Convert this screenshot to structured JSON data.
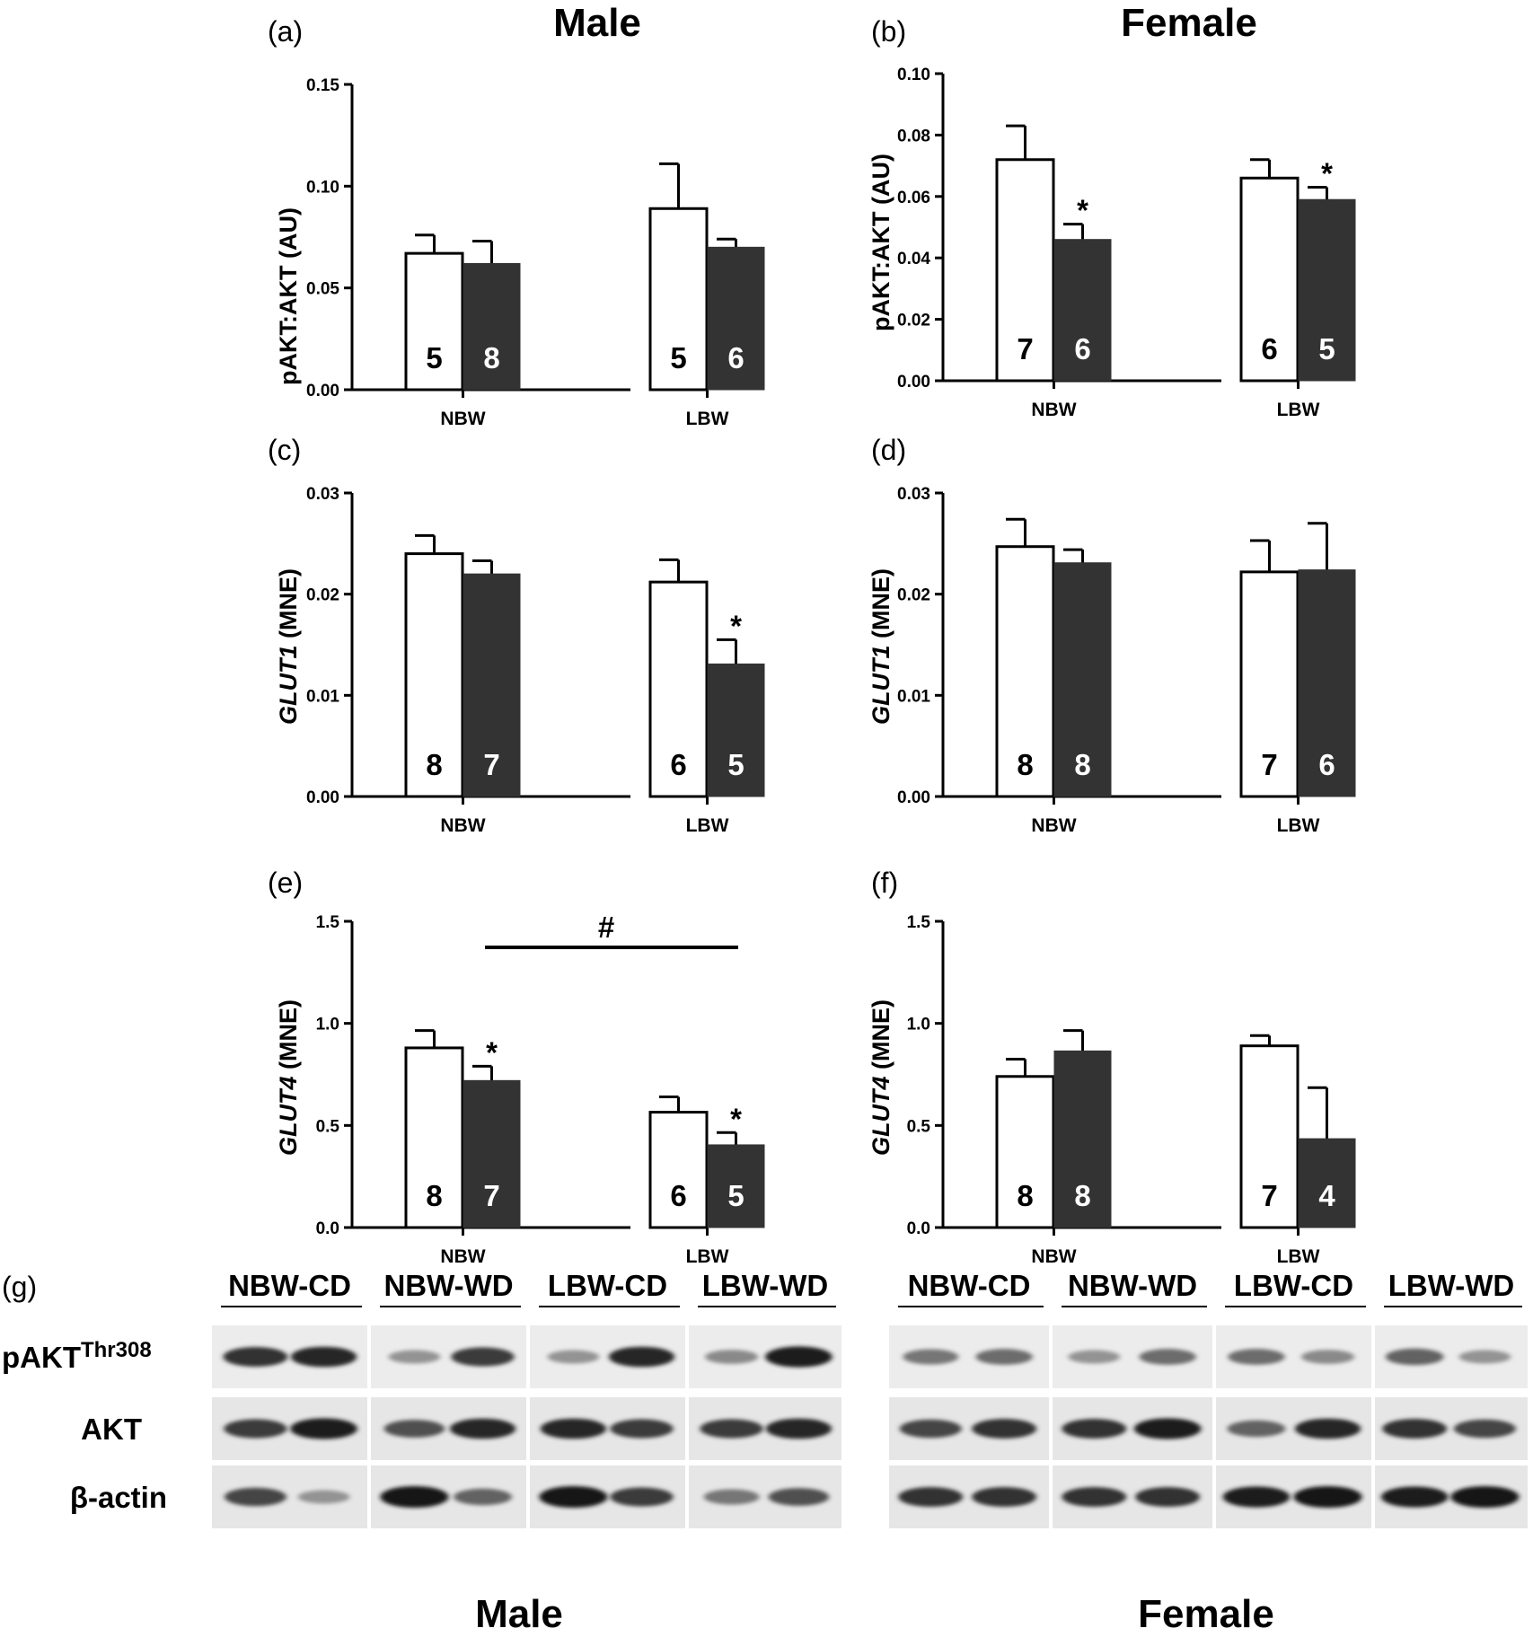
{
  "column_titles": [
    "Male",
    "Female"
  ],
  "chart_data": [
    {
      "panel": "(a)",
      "type": "bar",
      "ylabel_parts": [
        {
          "t": "pAKT:AKT",
          "i": false
        },
        {
          "t": " (AU)",
          "i": false
        }
      ],
      "ylim": [
        0,
        0.15
      ],
      "yticks": [
        "0.00",
        "0.05",
        "0.10",
        "0.15"
      ],
      "categories": [
        "NBW",
        "LBW"
      ],
      "series": [
        {
          "fill": "#ffffff",
          "values": [
            0.067,
            0.089
          ],
          "errors": [
            0.009,
            0.022
          ],
          "n": [
            "5",
            "5"
          ],
          "marks": [
            "",
            ""
          ]
        },
        {
          "fill": "#333333",
          "values": [
            0.062,
            0.07
          ],
          "errors": [
            0.011,
            0.004
          ],
          "n": [
            "8",
            "6"
          ],
          "marks": [
            "",
            ""
          ]
        }
      ],
      "bracket": null
    },
    {
      "panel": "(b)",
      "type": "bar",
      "ylabel_parts": [
        {
          "t": "pAKT:AKT",
          "i": false
        },
        {
          "t": " (AU)",
          "i": false
        }
      ],
      "ylim": [
        0,
        0.1
      ],
      "yticks": [
        "0.00",
        "0.02",
        "0.04",
        "0.06",
        "0.08",
        "0.10"
      ],
      "categories": [
        "NBW",
        "LBW"
      ],
      "series": [
        {
          "fill": "#ffffff",
          "values": [
            0.072,
            0.066
          ],
          "errors": [
            0.011,
            0.006
          ],
          "n": [
            "7",
            "6"
          ],
          "marks": [
            "",
            ""
          ]
        },
        {
          "fill": "#333333",
          "values": [
            0.046,
            0.059
          ],
          "errors": [
            0.005,
            0.004
          ],
          "n": [
            "6",
            "5"
          ],
          "marks": [
            "*",
            "*"
          ]
        }
      ],
      "bracket": null
    },
    {
      "panel": "(c)",
      "type": "bar",
      "ylabel_parts": [
        {
          "t": "GLUT1",
          "i": true
        },
        {
          "t": " (MNE)",
          "i": false
        }
      ],
      "ylim": [
        0,
        0.03
      ],
      "yticks": [
        "0.00",
        "0.01",
        "0.02",
        "0.03"
      ],
      "categories": [
        "NBW",
        "LBW"
      ],
      "series": [
        {
          "fill": "#ffffff",
          "values": [
            0.024,
            0.0212
          ],
          "errors": [
            0.0018,
            0.0022
          ],
          "n": [
            "8",
            "6"
          ],
          "marks": [
            "",
            ""
          ]
        },
        {
          "fill": "#333333",
          "values": [
            0.022,
            0.0131
          ],
          "errors": [
            0.0013,
            0.0024
          ],
          "n": [
            "7",
            "5"
          ],
          "marks": [
            "",
            "*"
          ]
        }
      ],
      "bracket": null
    },
    {
      "panel": "(d)",
      "type": "bar",
      "ylabel_parts": [
        {
          "t": "GLUT1",
          "i": true
        },
        {
          "t": " (MNE)",
          "i": false
        }
      ],
      "ylim": [
        0,
        0.03
      ],
      "yticks": [
        "0.00",
        "0.01",
        "0.02",
        "0.03"
      ],
      "categories": [
        "NBW",
        "LBW"
      ],
      "series": [
        {
          "fill": "#ffffff",
          "values": [
            0.0247,
            0.0222
          ],
          "errors": [
            0.0027,
            0.0031
          ],
          "n": [
            "8",
            "7"
          ],
          "marks": [
            "",
            ""
          ]
        },
        {
          "fill": "#333333",
          "values": [
            0.0231,
            0.0224
          ],
          "errors": [
            0.0013,
            0.0046
          ],
          "n": [
            "8",
            "6"
          ],
          "marks": [
            "",
            ""
          ]
        }
      ],
      "bracket": null
    },
    {
      "panel": "(e)",
      "type": "bar",
      "ylabel_parts": [
        {
          "t": "GLUT4",
          "i": true
        },
        {
          "t": " (MNE)",
          "i": false
        }
      ],
      "ylim": [
        0,
        1.5
      ],
      "yticks": [
        "0.0",
        "0.5",
        "1.0",
        "1.5"
      ],
      "categories": [
        "NBW",
        "LBW"
      ],
      "series": [
        {
          "fill": "#ffffff",
          "values": [
            0.88,
            0.565
          ],
          "errors": [
            0.085,
            0.075
          ],
          "n": [
            "8",
            "6"
          ],
          "marks": [
            "",
            ""
          ]
        },
        {
          "fill": "#333333",
          "values": [
            0.72,
            0.405
          ],
          "errors": [
            0.07,
            0.06
          ],
          "n": [
            "7",
            "5"
          ],
          "marks": [
            "*",
            "*"
          ]
        }
      ],
      "bracket": {
        "label": "#"
      }
    },
    {
      "panel": "(f)",
      "type": "bar",
      "ylabel_parts": [
        {
          "t": "GLUT4",
          "i": true
        },
        {
          "t": " (MNE)",
          "i": false
        }
      ],
      "ylim": [
        0,
        1.5
      ],
      "yticks": [
        "0.0",
        "0.5",
        "1.0",
        "1.5"
      ],
      "categories": [
        "NBW",
        "LBW"
      ],
      "series": [
        {
          "fill": "#ffffff",
          "values": [
            0.74,
            0.89
          ],
          "errors": [
            0.085,
            0.05
          ],
          "n": [
            "8",
            "7"
          ],
          "marks": [
            "",
            ""
          ]
        },
        {
          "fill": "#333333",
          "values": [
            0.865,
            0.435
          ],
          "errors": [
            0.1,
            0.25
          ],
          "n": [
            "8",
            "4"
          ],
          "marks": [
            "",
            ""
          ]
        }
      ],
      "bracket": null
    }
  ],
  "blot": {
    "panel": "(g)",
    "row_labels": [
      "pAKT",
      "AKT",
      "β-actin"
    ],
    "row_label_sup": "Thr308",
    "male": {
      "title": "Male",
      "groups": [
        "NBW-CD",
        "NBW-WD",
        "LBW-CD",
        "LBW-WD"
      ],
      "bands": [
        [
          0.85,
          0.9,
          0.35,
          0.8,
          0.35,
          0.9,
          0.4,
          0.95
        ],
        [
          0.8,
          0.95,
          0.7,
          0.9,
          0.9,
          0.8,
          0.8,
          0.9
        ],
        [
          0.75,
          0.35,
          1.0,
          0.6,
          1.0,
          0.8,
          0.5,
          0.7
        ]
      ]
    },
    "female": {
      "title": "Female",
      "groups": [
        "NBW-CD",
        "NBW-WD",
        "LBW-CD",
        "LBW-WD"
      ],
      "bands": [
        [
          0.5,
          0.55,
          0.35,
          0.55,
          0.55,
          0.4,
          0.6,
          0.35
        ],
        [
          0.75,
          0.85,
          0.85,
          0.95,
          0.6,
          0.9,
          0.85,
          0.75
        ],
        [
          0.85,
          0.85,
          0.85,
          0.85,
          0.95,
          1.0,
          0.95,
          1.0
        ]
      ]
    }
  }
}
